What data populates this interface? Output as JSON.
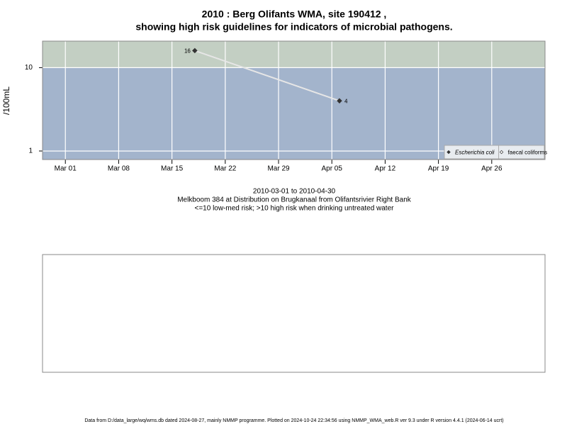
{
  "chart_data": {
    "type": "line",
    "title": "2010 : Berg Olifants WMA, site 190412 ,",
    "subtitle": "showing high risk guidelines for indicators of microbial pathogens.",
    "y_label": "/100mL",
    "caption": [
      "2010-03-01 to 2010-04-30",
      "Melkboom 384 at Distribution on Brugkanaal from Olifantsrivier Right Bank",
      "<=10 low-med risk; >10 high risk when drinking untreated water"
    ],
    "footer": "Data from D:/data_large/wq/wms.db dated 2024-08-27, mainly NMMP programme. Plotted on 2024-10-24 22:34:56 using NMMP_WMA_web.R ver 9.3 under R version 4.4.1 (2024-06-14 ucrt)",
    "x": [
      "2010-03-18",
      "2010-04-06"
    ],
    "series": [
      {
        "name": "Escherichia coli",
        "color": "#333333",
        "line_color": "#e6e6e6",
        "marker": "filled",
        "values": [
          16,
          4
        ]
      },
      {
        "name": "faecal coliforms",
        "color": "#333333",
        "marker": "open",
        "values": [
          null,
          null
        ]
      }
    ],
    "log_y": true,
    "ylim": [
      0.79,
      20.8
    ],
    "yticks": [
      1,
      10
    ],
    "threshold": 10,
    "xlim": [
      "2010-02-26",
      "2010-05-03"
    ],
    "xticks": [
      {
        "value": "2010-03-01",
        "label": "Mar 01"
      },
      {
        "value": "2010-03-08",
        "label": "Mar 08"
      },
      {
        "value": "2010-03-15",
        "label": "Mar 15"
      },
      {
        "value": "2010-03-22",
        "label": "Mar 22"
      },
      {
        "value": "2010-03-29",
        "label": "Mar 29"
      },
      {
        "value": "2010-04-05",
        "label": "Apr 05"
      },
      {
        "value": "2010-04-12",
        "label": "Apr 12"
      },
      {
        "value": "2010-04-19",
        "label": "Apr 19"
      },
      {
        "value": "2010-04-26",
        "label": "Apr 26"
      }
    ],
    "grid": true,
    "legend_position": "bottom-right",
    "low_color": "#a3b4cc",
    "high_color": "#c3cfc3"
  }
}
